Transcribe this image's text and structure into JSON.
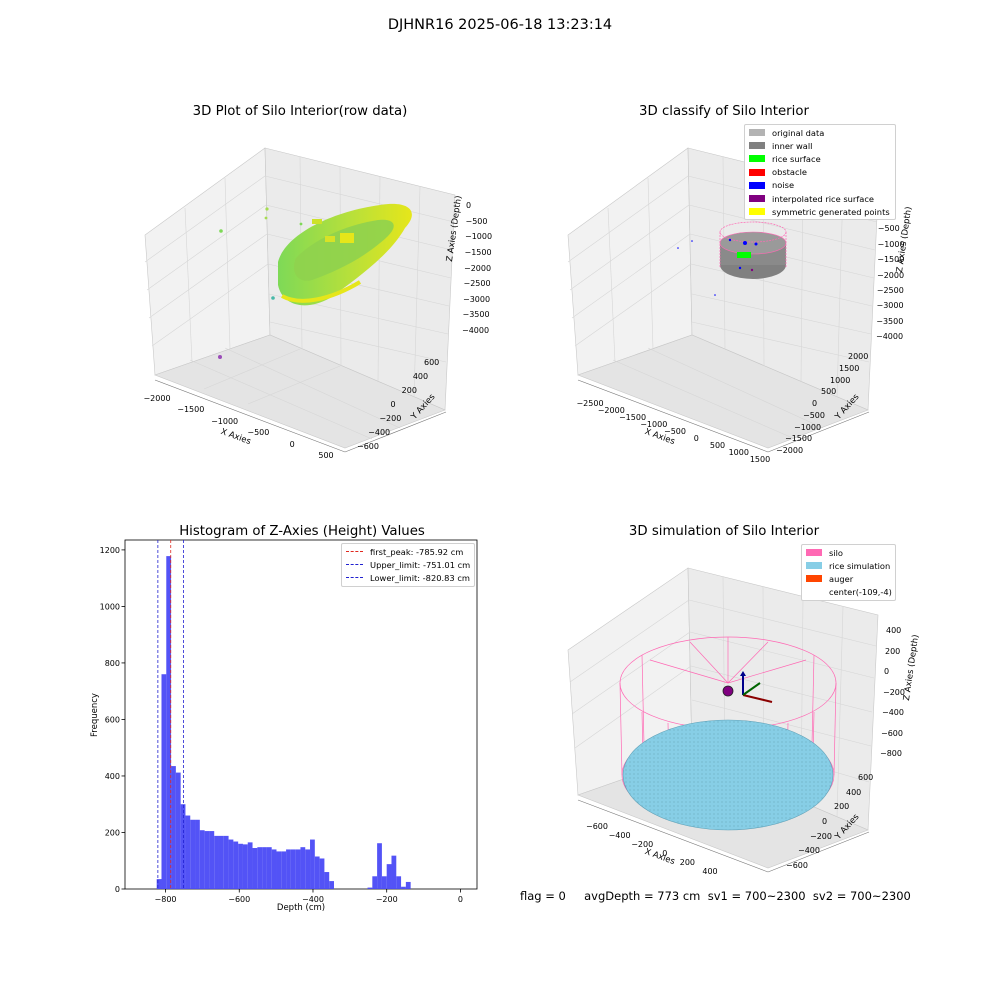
{
  "figure": {
    "title": "DJHNR16 2025-06-18 13:23:14",
    "footer": "flag = 0     avgDepth = 773 cm  sv1 = 700~2300  sv2 = 700~2300"
  },
  "colors": {
    "histogram_bar": "#4a4af5",
    "peak_line": "#e0281e",
    "limit_line": "#2020d0",
    "rice_green": "#7ed957",
    "rice_yellow": "#e6e61a",
    "silo_pink": "#ff69b4",
    "rice_sim_blue": "#87cee6",
    "auger_orange": "#ff4500"
  },
  "panels": {
    "raw": {
      "title": "3D Plot of Silo Interior(row data)",
      "xlabel": "X Axies",
      "ylabel": "Y Axies",
      "zlabel": "Z Axies (Depth)",
      "xticks": [
        "−2000",
        "−1500",
        "−1000",
        "−500",
        "0",
        "500"
      ],
      "yticks": [
        "−600",
        "−400",
        "−200",
        "0",
        "200",
        "400",
        "600"
      ],
      "zticks": [
        "0",
        "−500",
        "−1000",
        "−1500",
        "−2000",
        "−2500",
        "−3000",
        "−3500",
        "−4000"
      ]
    },
    "classify": {
      "title": "3D classify of Silo Interior",
      "xlabel": "X Axies",
      "ylabel": "Y Axies",
      "zlabel": "Z Axies (Depth)",
      "xticks": [
        "−2500",
        "−2000",
        "−1500",
        "−1000",
        "−500",
        "0",
        "500",
        "1000",
        "1500"
      ],
      "yticks": [
        "−2000",
        "−1500",
        "−1000",
        "−500",
        "0",
        "500",
        "1000",
        "1500",
        "2000"
      ],
      "zticks": [
        "0",
        "−500",
        "−1000",
        "−1500",
        "−2000",
        "−2500",
        "−3000",
        "−3500",
        "−4000"
      ],
      "legend": [
        {
          "label": "original data",
          "color": "#b3b3b3"
        },
        {
          "label": "inner wall",
          "color": "#808080"
        },
        {
          "label": "rice surface",
          "color": "#00ff00"
        },
        {
          "label": "obstacle",
          "color": "#ff0000"
        },
        {
          "label": "noise",
          "color": "#0000ff"
        },
        {
          "label": "interpolated rice surface",
          "color": "#800080"
        },
        {
          "label": "symmetric generated points",
          "color": "#ffff00"
        }
      ]
    },
    "simulation": {
      "title": "3D simulation of Silo Interior",
      "xlabel": "X Axies",
      "ylabel": "Y Axies",
      "zlabel": "Z Axies (Depth)",
      "xticks": [
        "−600",
        "−400",
        "−200",
        "0",
        "200",
        "400"
      ],
      "yticks": [
        "−600",
        "−400",
        "−200",
        "0",
        "200",
        "400",
        "600"
      ],
      "zticks": [
        "400",
        "200",
        "0",
        "−200",
        "−400",
        "−600",
        "−800"
      ],
      "legend": [
        {
          "label": "silo",
          "color": "#ff69b4"
        },
        {
          "label": "rice simulation",
          "color": "#87cee6"
        },
        {
          "label": "auger",
          "color": "#ff4500"
        },
        {
          "label": "center(-109,-4)",
          "color": ""
        }
      ]
    }
  },
  "chart_data": [
    {
      "type": "bar",
      "title": "Histogram of Z-Axies (Height) Values",
      "xlabel": "Depth (cm)",
      "ylabel": "Frequency",
      "xlim": [
        -910,
        45
      ],
      "ylim": [
        0,
        1235
      ],
      "bin_width": 13,
      "xticks": [
        -800,
        -600,
        -400,
        -200,
        0
      ],
      "yticks": [
        0,
        200,
        400,
        600,
        800,
        1000,
        1200
      ],
      "bins": [
        {
          "x": -824,
          "y": 35
        },
        {
          "x": -811,
          "y": 760
        },
        {
          "x": -798,
          "y": 1178
        },
        {
          "x": -785,
          "y": 435
        },
        {
          "x": -772,
          "y": 412
        },
        {
          "x": -759,
          "y": 300
        },
        {
          "x": -746,
          "y": 260
        },
        {
          "x": -733,
          "y": 245
        },
        {
          "x": -720,
          "y": 245
        },
        {
          "x": -707,
          "y": 208
        },
        {
          "x": -694,
          "y": 205
        },
        {
          "x": -681,
          "y": 205
        },
        {
          "x": -668,
          "y": 188
        },
        {
          "x": -655,
          "y": 188
        },
        {
          "x": -642,
          "y": 188
        },
        {
          "x": -629,
          "y": 175
        },
        {
          "x": -616,
          "y": 168
        },
        {
          "x": -603,
          "y": 160
        },
        {
          "x": -590,
          "y": 158
        },
        {
          "x": -577,
          "y": 165
        },
        {
          "x": -564,
          "y": 145
        },
        {
          "x": -551,
          "y": 148
        },
        {
          "x": -538,
          "y": 148
        },
        {
          "x": -525,
          "y": 148
        },
        {
          "x": -512,
          "y": 140
        },
        {
          "x": -499,
          "y": 133
        },
        {
          "x": -486,
          "y": 133
        },
        {
          "x": -473,
          "y": 140
        },
        {
          "x": -460,
          "y": 140
        },
        {
          "x": -447,
          "y": 140
        },
        {
          "x": -434,
          "y": 148
        },
        {
          "x": -421,
          "y": 140
        },
        {
          "x": -408,
          "y": 175
        },
        {
          "x": -395,
          "y": 115
        },
        {
          "x": -382,
          "y": 108
        },
        {
          "x": -369,
          "y": 60
        },
        {
          "x": -356,
          "y": 28
        },
        {
          "x": -343,
          "y": 0
        },
        {
          "x": -330,
          "y": 0
        },
        {
          "x": -317,
          "y": 0
        },
        {
          "x": -304,
          "y": 0
        },
        {
          "x": -291,
          "y": 0
        },
        {
          "x": -278,
          "y": 0
        },
        {
          "x": -265,
          "y": 0
        },
        {
          "x": -252,
          "y": 5
        },
        {
          "x": -239,
          "y": 45
        },
        {
          "x": -226,
          "y": 162
        },
        {
          "x": -213,
          "y": 45
        },
        {
          "x": -200,
          "y": 88
        },
        {
          "x": -187,
          "y": 118
        },
        {
          "x": -174,
          "y": 45
        },
        {
          "x": -161,
          "y": 8
        },
        {
          "x": -148,
          "y": 25
        }
      ],
      "vlines": [
        {
          "label": "first_peak: -785.92 cm",
          "x": -785.92,
          "color": "#e0281e"
        },
        {
          "label": "Upper_limit: -751.01 cm",
          "x": -751.01,
          "color": "#2020d0"
        },
        {
          "label": "Lower_limit: -820.83 cm",
          "x": -820.83,
          "color": "#2020d0"
        }
      ]
    }
  ]
}
